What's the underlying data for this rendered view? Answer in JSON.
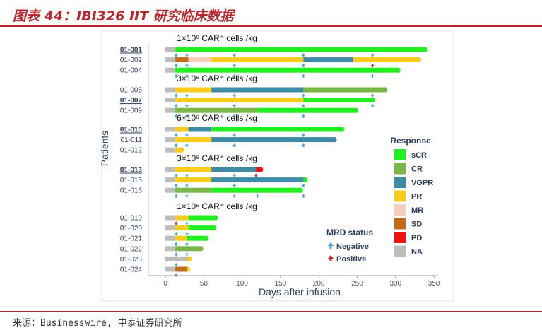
{
  "header": {
    "title": "图表 44：IBI326 IIT 研究临床数据"
  },
  "source": {
    "text": "来源：Businesswire, 中泰证券研究所"
  },
  "chart_data": {
    "type": "bar",
    "orientation": "horizontal-swimmer",
    "xlabel": "Days after infusion",
    "ylabel": "Patients",
    "xlim": [
      0,
      350
    ],
    "xticks": [
      0,
      50,
      100,
      150,
      200,
      250,
      300,
      350
    ],
    "grid": false,
    "groups": [
      {
        "label": "1×10⁶ CAR⁺ cells /kg",
        "patients": [
          {
            "id": "01-001",
            "underline": true,
            "segments": [
              {
                "status": "NA",
                "start": 0,
                "end": 13
              },
              {
                "status": "sCR",
                "start": 13,
                "end": 340
              }
            ],
            "negative": [
              14,
              28,
              90,
              180,
              270
            ],
            "positive": []
          },
          {
            "id": "01-002",
            "underline": false,
            "segments": [
              {
                "status": "NA",
                "start": 0,
                "end": 13
              },
              {
                "status": "SD",
                "start": 13,
                "end": 30
              },
              {
                "status": "MR",
                "start": 30,
                "end": 60
              },
              {
                "status": "PR",
                "start": 60,
                "end": 180
              },
              {
                "status": "VGPR",
                "start": 180,
                "end": 245
              },
              {
                "status": "PR",
                "start": 245,
                "end": 332
              }
            ],
            "negative": [
              14,
              28,
              90,
              180
            ],
            "positive": [
              270
            ]
          },
          {
            "id": "01-004",
            "underline": false,
            "segments": [
              {
                "status": "NA",
                "start": 0,
                "end": 13
              },
              {
                "status": "sCR",
                "start": 13,
                "end": 305
              }
            ],
            "negative": [
              14,
              28,
              90,
              180,
              270
            ],
            "positive": []
          }
        ]
      },
      {
        "label": "3×10⁶ CAR⁺ cells /kg",
        "patients": [
          {
            "id": "01-005",
            "underline": false,
            "segments": [
              {
                "status": "NA",
                "start": 0,
                "end": 13
              },
              {
                "status": "PR",
                "start": 13,
                "end": 60
              },
              {
                "status": "VGPR",
                "start": 60,
                "end": 180
              },
              {
                "status": "CR",
                "start": 180,
                "end": 288
              }
            ],
            "negative": [
              14,
              28,
              90,
              180,
              270
            ],
            "positive": []
          },
          {
            "id": "01-007",
            "underline": true,
            "segments": [
              {
                "status": "NA",
                "start": 0,
                "end": 13
              },
              {
                "status": "PR",
                "start": 13,
                "end": 180
              },
              {
                "status": "sCR",
                "start": 180,
                "end": 272
              }
            ],
            "negative": [
              14,
              28,
              90,
              180,
              270
            ],
            "positive": []
          },
          {
            "id": "01-009",
            "underline": false,
            "segments": [
              {
                "status": "NA",
                "start": 0,
                "end": 13
              },
              {
                "status": "CR",
                "start": 13,
                "end": 120
              },
              {
                "status": "sCR",
                "start": 120,
                "end": 250
              }
            ],
            "negative": [
              14,
              28,
              90,
              180
            ],
            "positive": []
          }
        ]
      },
      {
        "label": "6×10⁶ CAR⁺ cells /kg",
        "patients": [
          {
            "id": "01-010",
            "underline": true,
            "segments": [
              {
                "status": "NA",
                "start": 0,
                "end": 13
              },
              {
                "status": "PR",
                "start": 13,
                "end": 30
              },
              {
                "status": "VGPR",
                "start": 30,
                "end": 60
              },
              {
                "status": "sCR",
                "start": 60,
                "end": 232
              }
            ],
            "negative": [
              14,
              28,
              90,
              180
            ],
            "positive": []
          },
          {
            "id": "01-011",
            "underline": false,
            "segments": [
              {
                "status": "NA",
                "start": 0,
                "end": 13
              },
              {
                "status": "PR",
                "start": 13,
                "end": 60
              },
              {
                "status": "VGPR",
                "start": 60,
                "end": 222
              }
            ],
            "negative": [
              14,
              28,
              90,
              180
            ],
            "positive": []
          },
          {
            "id": "01-012",
            "underline": false,
            "segments": [
              {
                "status": "NA",
                "start": 0,
                "end": 13
              },
              {
                "status": "PR",
                "start": 13,
                "end": 23
              }
            ],
            "negative": [],
            "positive": []
          }
        ]
      },
      {
        "label": "3×10⁶ CAR⁺ cells /kg",
        "patients": [
          {
            "id": "01-013",
            "underline": true,
            "segments": [
              {
                "status": "NA",
                "start": 0,
                "end": 13
              },
              {
                "status": "PR",
                "start": 13,
                "end": 60
              },
              {
                "status": "VGPR",
                "start": 60,
                "end": 118
              },
              {
                "status": "PD",
                "start": 118,
                "end": 126
              }
            ],
            "negative": [
              14,
              28,
              90
            ],
            "positive": [
              118
            ]
          },
          {
            "id": "01-015",
            "underline": false,
            "segments": [
              {
                "status": "NA",
                "start": 0,
                "end": 13
              },
              {
                "status": "PR",
                "start": 13,
                "end": 60
              },
              {
                "status": "VGPR",
                "start": 60,
                "end": 180
              },
              {
                "status": "sCR",
                "start": 180,
                "end": 184
              }
            ],
            "negative": [
              14,
              28,
              90,
              180
            ],
            "positive": []
          },
          {
            "id": "01-016",
            "underline": false,
            "segments": [
              {
                "status": "NA",
                "start": 0,
                "end": 13
              },
              {
                "status": "CR",
                "start": 13,
                "end": 60
              },
              {
                "status": "sCR",
                "start": 60,
                "end": 178
              }
            ],
            "negative": [
              14,
              28,
              90,
              120,
              180
            ],
            "positive": []
          }
        ]
      },
      {
        "label": "1×10⁶ CAR⁺ cells /kg",
        "patients": [
          {
            "id": "01-019",
            "underline": false,
            "segments": [
              {
                "status": "NA",
                "start": 0,
                "end": 13
              },
              {
                "status": "PR",
                "start": 13,
                "end": 30
              },
              {
                "status": "sCR",
                "start": 30,
                "end": 67
              }
            ],
            "negative": [
              28
            ],
            "positive": [
              14
            ]
          },
          {
            "id": "01-020",
            "underline": false,
            "segments": [
              {
                "status": "NA",
                "start": 0,
                "end": 13
              },
              {
                "status": "PR",
                "start": 13,
                "end": 30
              },
              {
                "status": "sCR",
                "start": 30,
                "end": 65
              }
            ],
            "negative": [
              14,
              28
            ],
            "positive": []
          },
          {
            "id": "01-021",
            "underline": false,
            "segments": [
              {
                "status": "NA",
                "start": 0,
                "end": 13
              },
              {
                "status": "PR",
                "start": 13,
                "end": 28
              },
              {
                "status": "sCR",
                "start": 28,
                "end": 55
              }
            ],
            "negative": [
              14,
              28
            ],
            "positive": []
          },
          {
            "id": "01-022",
            "underline": false,
            "segments": [
              {
                "status": "NA",
                "start": 0,
                "end": 13
              },
              {
                "status": "CR",
                "start": 13,
                "end": 48
              }
            ],
            "negative": [
              14,
              28
            ],
            "positive": []
          },
          {
            "id": "01-023",
            "underline": false,
            "segments": [
              {
                "status": "NA",
                "start": 0,
                "end": 28
              },
              {
                "status": "PR",
                "start": 28,
                "end": 33
              }
            ],
            "negative": [
              14
            ],
            "positive": []
          },
          {
            "id": "01-024",
            "underline": false,
            "segments": [
              {
                "status": "NA",
                "start": 0,
                "end": 13
              },
              {
                "status": "SD",
                "start": 13,
                "end": 28
              },
              {
                "status": "PR",
                "start": 28,
                "end": 31
              }
            ],
            "negative": [
              14
            ],
            "positive": []
          }
        ]
      }
    ],
    "legend": {
      "title": "Response",
      "placement": "right",
      "entries": [
        {
          "key": "sCR",
          "label": "sCR",
          "color": "#22ee22"
        },
        {
          "key": "CR",
          "label": "CR",
          "color": "#7ab648"
        },
        {
          "key": "VGPR",
          "label": "VGPR",
          "color": "#3f8aa6"
        },
        {
          "key": "PR",
          "label": "PR",
          "color": "#f8cc1b"
        },
        {
          "key": "MR",
          "label": "MR",
          "color": "#f7cdbd"
        },
        {
          "key": "SD",
          "label": "SD",
          "color": "#c46a1b"
        },
        {
          "key": "PD",
          "label": "PD",
          "color": "#ee1111"
        },
        {
          "key": "NA",
          "label": "NA",
          "color": "#bdbdbd"
        }
      ]
    },
    "mrd_legend": {
      "title": "MRD status",
      "negative_label": "Negative",
      "positive_label": "Positive",
      "negative_color": "#35a3dc",
      "positive_color": "#d21f1f"
    }
  }
}
